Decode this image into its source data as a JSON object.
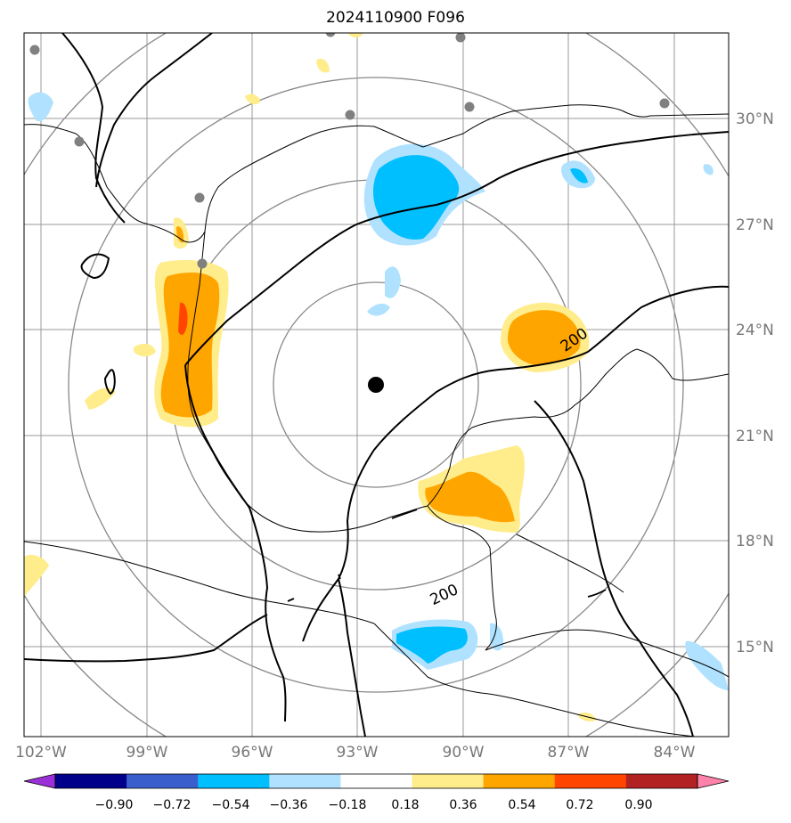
{
  "title": "2024110900 F096",
  "map": {
    "lon_labels": [
      "102°W",
      "99°W",
      "96°W",
      "93°W",
      "90°W",
      "87°W",
      "84°W"
    ],
    "lat_labels": [
      "30°N",
      "27°N",
      "24°N",
      "21°N",
      "18°N",
      "15°N"
    ],
    "contour_labels": [
      "200",
      "200"
    ],
    "storm_center": "black-dot"
  },
  "colorbar": {
    "ticks": [
      "−0.90",
      "−0.72",
      "−0.54",
      "−0.36",
      "−0.18",
      "0.18",
      "0.36",
      "0.54",
      "0.72",
      "0.90"
    ],
    "colors": [
      "#9b30d9",
      "#00008b",
      "#3a5fcd",
      "#00bfff",
      "#b0e2ff",
      "#ffffff",
      "#ffec8b",
      "#ffa500",
      "#ff4500",
      "#b22222",
      "#ff82ab"
    ]
  }
}
